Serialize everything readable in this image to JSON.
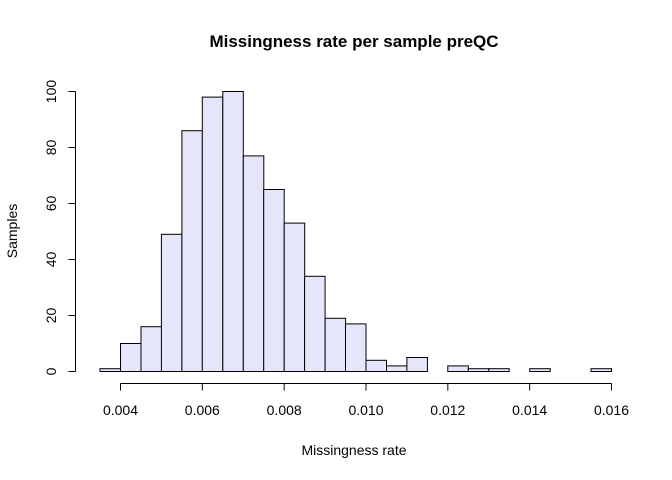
{
  "chart_data": {
    "type": "bar",
    "title": "Missingness rate per sample preQC",
    "xlabel": "Missingness rate",
    "ylabel": "Samples",
    "bar_color": "#e6e6fa",
    "border_color": "#000000",
    "grid": false,
    "xlim": [
      0.0035,
      0.016
    ],
    "ylim": [
      0,
      100
    ],
    "x_ticks": [
      {
        "value": 0.004,
        "label": "0.004"
      },
      {
        "value": 0.006,
        "label": "0.006"
      },
      {
        "value": 0.008,
        "label": "0.008"
      },
      {
        "value": 0.01,
        "label": "0.010"
      },
      {
        "value": 0.012,
        "label": "0.012"
      },
      {
        "value": 0.014,
        "label": "0.014"
      },
      {
        "value": 0.016,
        "label": "0.016"
      }
    ],
    "y_ticks": [
      {
        "value": 0,
        "label": "0"
      },
      {
        "value": 20,
        "label": "20"
      },
      {
        "value": 40,
        "label": "40"
      },
      {
        "value": 60,
        "label": "60"
      },
      {
        "value": 80,
        "label": "80"
      },
      {
        "value": 100,
        "label": "100"
      }
    ],
    "bins": [
      {
        "start": 0.0035,
        "end": 0.004,
        "count": 1
      },
      {
        "start": 0.004,
        "end": 0.0045,
        "count": 10
      },
      {
        "start": 0.0045,
        "end": 0.005,
        "count": 16
      },
      {
        "start": 0.005,
        "end": 0.0055,
        "count": 49
      },
      {
        "start": 0.0055,
        "end": 0.006,
        "count": 86
      },
      {
        "start": 0.006,
        "end": 0.0065,
        "count": 98
      },
      {
        "start": 0.0065,
        "end": 0.007,
        "count": 100
      },
      {
        "start": 0.007,
        "end": 0.0075,
        "count": 77
      },
      {
        "start": 0.0075,
        "end": 0.008,
        "count": 65
      },
      {
        "start": 0.008,
        "end": 0.0085,
        "count": 53
      },
      {
        "start": 0.0085,
        "end": 0.009,
        "count": 34
      },
      {
        "start": 0.009,
        "end": 0.0095,
        "count": 19
      },
      {
        "start": 0.0095,
        "end": 0.01,
        "count": 17
      },
      {
        "start": 0.01,
        "end": 0.0105,
        "count": 4
      },
      {
        "start": 0.0105,
        "end": 0.011,
        "count": 2
      },
      {
        "start": 0.011,
        "end": 0.0115,
        "count": 5
      },
      {
        "start": 0.0115,
        "end": 0.012,
        "count": 0
      },
      {
        "start": 0.012,
        "end": 0.0125,
        "count": 2
      },
      {
        "start": 0.0125,
        "end": 0.013,
        "count": 1
      },
      {
        "start": 0.013,
        "end": 0.0135,
        "count": 1
      },
      {
        "start": 0.0135,
        "end": 0.014,
        "count": 0
      },
      {
        "start": 0.014,
        "end": 0.0145,
        "count": 1
      },
      {
        "start": 0.0145,
        "end": 0.015,
        "count": 0
      },
      {
        "start": 0.015,
        "end": 0.0155,
        "count": 0
      },
      {
        "start": 0.0155,
        "end": 0.016,
        "count": 1
      }
    ]
  }
}
